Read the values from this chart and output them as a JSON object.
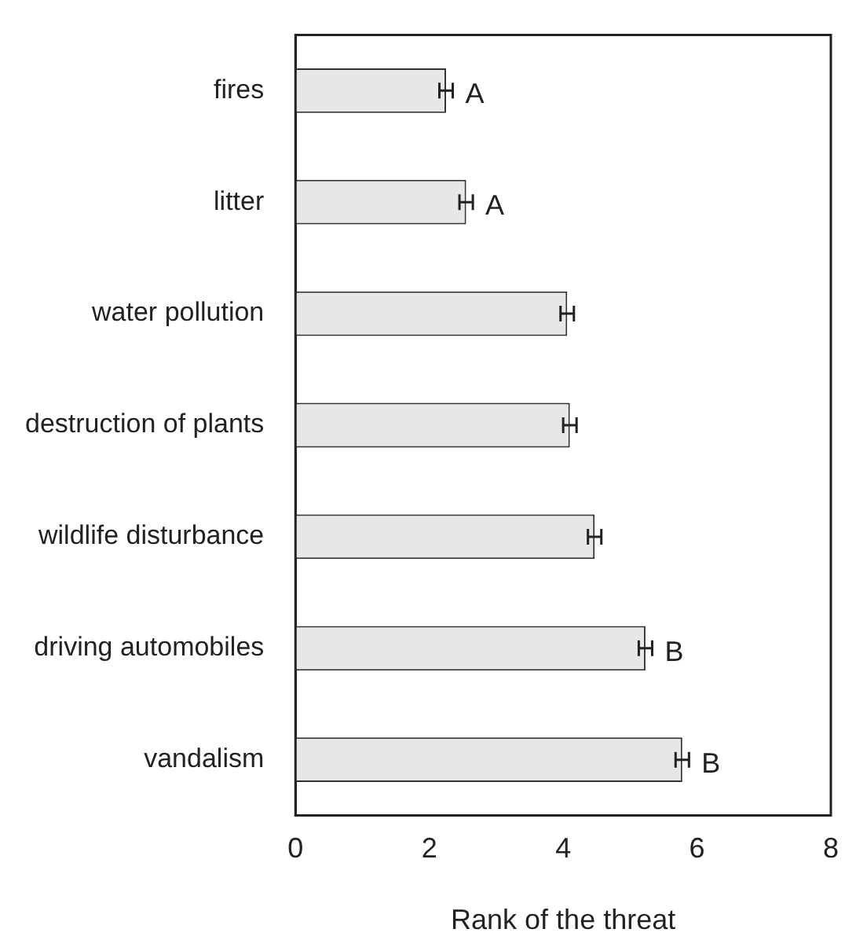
{
  "chart_data": {
    "type": "bar",
    "orientation": "horizontal",
    "xlabel": "Rank of the threat",
    "categories": [
      "fires",
      "litter",
      "water pollution",
      "destruction of plants",
      "wildlife disturbance",
      "driving automobiles",
      "vandalism"
    ],
    "values": [
      2.25,
      2.55,
      4.06,
      4.1,
      4.47,
      5.23,
      5.78
    ],
    "errors": [
      0.1,
      0.1,
      0.1,
      0.1,
      0.1,
      0.1,
      0.1
    ],
    "color": "#e6e7e8",
    "xlim": [
      0,
      8
    ],
    "xticks": [
      0,
      2,
      4,
      6,
      8
    ],
    "grid": false,
    "legend": false,
    "annotations": [
      {
        "text": "A",
        "x": 2.35,
        "y": "fires"
      },
      {
        "text": "A",
        "x": 2.65,
        "y": "litter"
      },
      {
        "text": "B",
        "x": 5.33,
        "y": "driving automobiles"
      },
      {
        "text": "B",
        "x": 5.88,
        "y": "vandalism"
      }
    ]
  }
}
